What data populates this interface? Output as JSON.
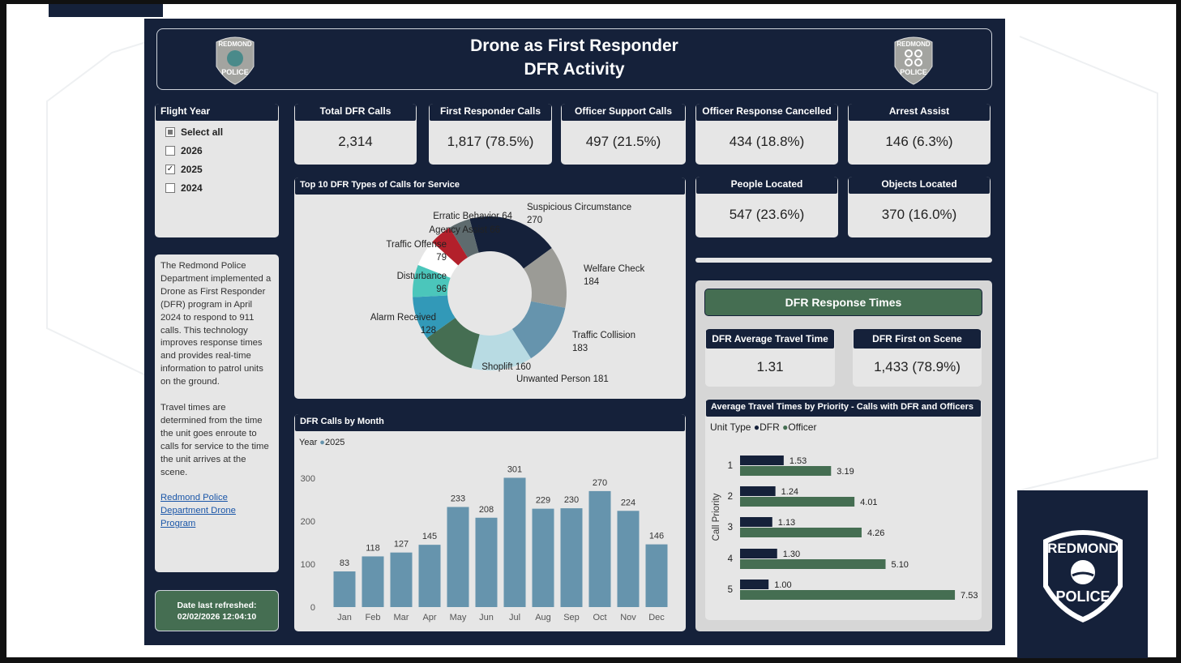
{
  "header": {
    "title": "Drone as First Responder",
    "subtitle": "DFR Activity",
    "logo_text": [
      "REDMOND",
      "POLICE"
    ]
  },
  "filter": {
    "title": "Flight Year",
    "items": [
      {
        "label": "Select all",
        "state": "partial"
      },
      {
        "label": "2026",
        "state": "unchecked"
      },
      {
        "label": "2025",
        "state": "checked"
      },
      {
        "label": "2024",
        "state": "unchecked"
      }
    ]
  },
  "kpis": [
    {
      "label": "Total DFR Calls",
      "value": "2,314"
    },
    {
      "label": "First Responder Calls",
      "value": "1,817 (78.5%)"
    },
    {
      "label": "Officer Support Calls",
      "value": "497 (21.5%)"
    },
    {
      "label": "Officer Response Cancelled",
      "value": "434 (18.8%)"
    },
    {
      "label": "Arrest Assist",
      "value": "146 (6.3%)"
    },
    {
      "label": "People Located",
      "value": "547 (23.6%)"
    },
    {
      "label": "Objects Located",
      "value": "370 (16.0%)"
    }
  ],
  "description": {
    "p1": "The Redmond Police Department implemented a Drone as First Responder (DFR) program in April 2024 to respond to 911 calls. This technology improves response times and provides real-time information to patrol units on the ground.",
    "p2": "Travel times are determined from the time the unit goes enroute to calls for service to the time the unit arrives at the scene.",
    "link": "Redmond Police Department Drone Program"
  },
  "refresh": {
    "label": "Date last refreshed:",
    "value": "02/02/2026 12:04:10"
  },
  "response": {
    "title": "DFR Response Times",
    "avg_label": "DFR Average Travel Time",
    "avg_value": "1.31",
    "first_label": "DFR First on Scene",
    "first_value": "1,433 (78.9%)"
  },
  "colors": {
    "navy": "#15213a",
    "green": "#456e52",
    "bar": "#6694ad",
    "panel": "#e6e6e6"
  },
  "chart_data": [
    {
      "type": "pie",
      "title": "Top 10 DFR Types of Calls for Service",
      "donut": true,
      "slices": [
        {
          "label": "Suspicious Circumstance",
          "value": 270,
          "color": "#15213a"
        },
        {
          "label": "Welfare Check",
          "value": 184,
          "color": "#9b9b96"
        },
        {
          "label": "Traffic Collision",
          "value": 183,
          "color": "#6694ad"
        },
        {
          "label": "Unwanted Person",
          "value": 181,
          "color": "#b8dbe3"
        },
        {
          "label": "Shoplift",
          "value": 160,
          "color": "#456e52"
        },
        {
          "label": "Alarm Received",
          "value": 128,
          "color": "#3299b8"
        },
        {
          "label": "Disturbance",
          "value": 96,
          "color": "#4bc6bb"
        },
        {
          "label": "Traffic Offense",
          "value": 79,
          "color": "#ffffff"
        },
        {
          "label": "Agency Assist",
          "value": 66,
          "color": "#b3202b"
        },
        {
          "label": "Erratic Behavior",
          "value": 64,
          "color": "#5e6b6e"
        }
      ]
    },
    {
      "type": "bar",
      "title": "DFR Calls by Month",
      "legend_title": "Year",
      "series": [
        {
          "name": "2025",
          "values": [
            83,
            118,
            127,
            145,
            233,
            208,
            301,
            229,
            230,
            270,
            224,
            146
          ]
        }
      ],
      "categories": [
        "Jan",
        "Feb",
        "Mar",
        "Apr",
        "May",
        "Jun",
        "Jul",
        "Aug",
        "Sep",
        "Oct",
        "Nov",
        "Dec"
      ],
      "yticks": [
        0,
        100,
        200,
        300
      ],
      "ylim": [
        0,
        300
      ]
    },
    {
      "type": "bar",
      "orientation": "horizontal",
      "title": "Average Travel Times by Priority - Calls with DFR and Officers",
      "legend_title": "Unit Type",
      "ylabel": "Call Priority",
      "categories": [
        "1",
        "2",
        "3",
        "4",
        "5"
      ],
      "series": [
        {
          "name": "DFR",
          "color": "#15213a",
          "values": [
            1.53,
            1.24,
            1.13,
            1.3,
            1.0
          ]
        },
        {
          "name": "Officer",
          "color": "#456e52",
          "values": [
            3.19,
            4.01,
            4.26,
            5.1,
            7.53
          ]
        }
      ]
    }
  ]
}
